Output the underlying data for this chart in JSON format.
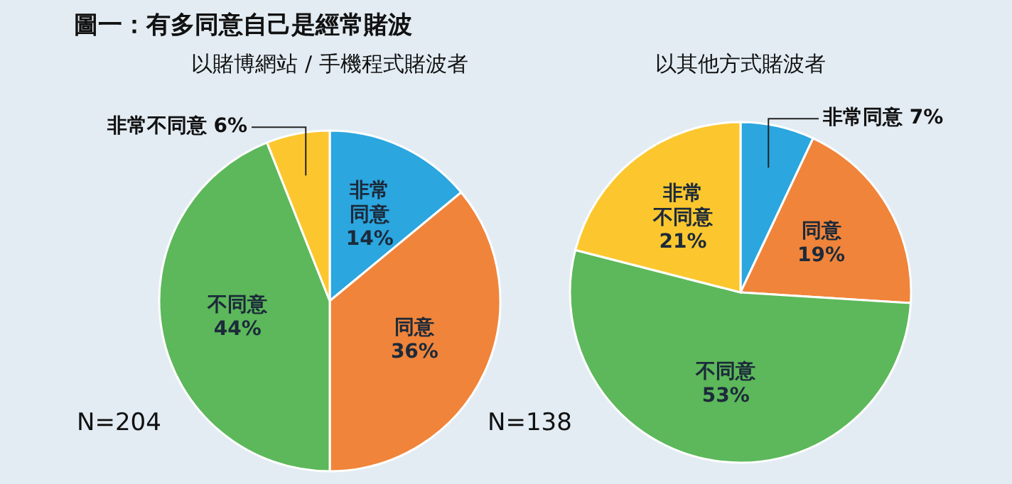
{
  "chart_data": [
    {
      "type": "pie",
      "title": "圖一：有多同意自己是經常賭波",
      "subtitle": "以賭博網站 / 手機程式賭波者",
      "categories": [
        "非常同意",
        "同意",
        "不同意",
        "非常不同意"
      ],
      "values": [
        14,
        36,
        44,
        6
      ],
      "value_labels": [
        "14%",
        "36%",
        "44%",
        "6%"
      ],
      "colors": [
        "#2ba6df",
        "#f0843a",
        "#5cb85a",
        "#fcc72e"
      ],
      "annotations": [
        "N=204"
      ]
    },
    {
      "type": "pie",
      "subtitle": "以其他方式賭波者",
      "categories": [
        "非常同意",
        "同意",
        "不同意",
        "非常不同意"
      ],
      "values": [
        7,
        19,
        53,
        21
      ],
      "value_labels": [
        "7%",
        "19%",
        "53%",
        "21%"
      ],
      "colors": [
        "#2ba6df",
        "#f0843a",
        "#5cb85a",
        "#fcc72e"
      ],
      "annotations": [
        "N=138"
      ]
    }
  ]
}
